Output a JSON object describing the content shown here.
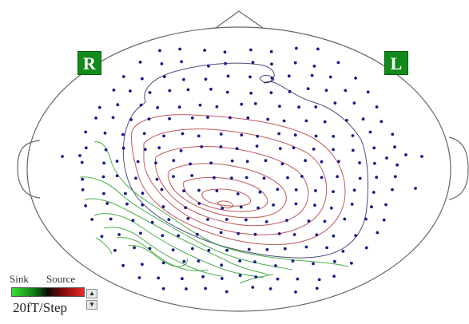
{
  "head_map": {
    "right_label": "R",
    "left_label": "L",
    "badge_color": "#138a1c",
    "outline_color": "#666666",
    "sensor_color": "#1a1a8c",
    "source_contour_color": "#b43c3c",
    "sink_contour_color": "#2e9e2e",
    "neutral_contour_color": "#2b2b6a"
  },
  "legend": {
    "sink_label": "Sink",
    "source_label": "Source",
    "step_label": "20fT/Step",
    "sink_color": "#37e23a",
    "source_color": "#e82a2a"
  },
  "controls": {
    "up_icon": "triangle-up-icon",
    "down_icon": "triangle-down-icon"
  }
}
